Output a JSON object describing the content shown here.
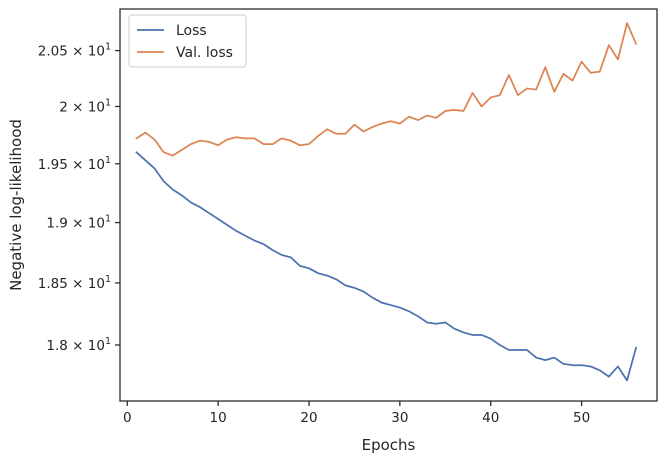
{
  "chart_data": {
    "type": "line",
    "xlabel": "Epochs",
    "ylabel": "Negative log-likelihood",
    "xlim": [
      -0.8,
      58.3
    ],
    "ylim": [
      17.56,
      20.88
    ],
    "y_scale": "log",
    "grid": false,
    "legend_position": "upper-left",
    "x_ticks": [
      0,
      10,
      20,
      30,
      40,
      50
    ],
    "y_ticks": [
      {
        "value": 18.0,
        "mantissa": "1.8",
        "base": "10",
        "exponent": "1"
      },
      {
        "value": 18.5,
        "mantissa": "1.85",
        "base": "10",
        "exponent": "1"
      },
      {
        "value": 19.0,
        "mantissa": "1.9",
        "base": "10",
        "exponent": "1"
      },
      {
        "value": 19.5,
        "mantissa": "1.95",
        "base": "10",
        "exponent": "1"
      },
      {
        "value": 20.0,
        "mantissa": "2",
        "base": "10",
        "exponent": "1"
      },
      {
        "value": 20.5,
        "mantissa": "2.05",
        "base": "10",
        "exponent": "1"
      }
    ],
    "series": [
      {
        "name": "Loss",
        "color": "#4c72b0",
        "x": [
          1,
          2,
          3,
          4,
          5,
          6,
          7,
          8,
          9,
          10,
          11,
          12,
          13,
          14,
          15,
          16,
          17,
          18,
          19,
          20,
          21,
          22,
          23,
          24,
          25,
          26,
          27,
          28,
          29,
          30,
          31,
          32,
          33,
          34,
          35,
          36,
          37,
          38,
          39,
          40,
          41,
          42,
          43,
          44,
          45,
          46,
          47,
          48,
          49,
          50,
          51,
          52,
          53,
          54,
          55,
          56
        ],
        "y": [
          19.6,
          19.53,
          19.46,
          19.35,
          19.28,
          19.23,
          19.17,
          19.13,
          19.08,
          19.03,
          18.98,
          18.93,
          18.89,
          18.85,
          18.82,
          18.77,
          18.73,
          18.71,
          18.64,
          18.62,
          18.58,
          18.56,
          18.53,
          18.48,
          18.46,
          18.43,
          18.38,
          18.34,
          18.32,
          18.3,
          18.27,
          18.23,
          18.18,
          18.17,
          18.18,
          18.13,
          18.1,
          18.08,
          18.08,
          18.05,
          18.0,
          17.96,
          17.96,
          17.96,
          17.9,
          17.88,
          17.9,
          17.85,
          17.84,
          17.84,
          17.83,
          17.8,
          17.75,
          17.83,
          17.72,
          17.98
        ]
      },
      {
        "name": "Val. loss",
        "color": "#dd8452",
        "x": [
          1,
          2,
          3,
          4,
          5,
          6,
          7,
          8,
          9,
          10,
          11,
          12,
          13,
          14,
          15,
          16,
          17,
          18,
          19,
          20,
          21,
          22,
          23,
          24,
          25,
          26,
          27,
          28,
          29,
          30,
          31,
          32,
          33,
          34,
          35,
          36,
          37,
          38,
          39,
          40,
          41,
          42,
          43,
          44,
          45,
          46,
          47,
          48,
          49,
          50,
          51,
          52,
          53,
          54,
          55,
          56
        ],
        "y": [
          19.72,
          19.77,
          19.71,
          19.6,
          19.57,
          19.62,
          19.67,
          19.7,
          19.69,
          19.66,
          19.71,
          19.73,
          19.72,
          19.72,
          19.67,
          19.67,
          19.72,
          19.7,
          19.66,
          19.67,
          19.74,
          19.8,
          19.76,
          19.76,
          19.84,
          19.78,
          19.82,
          19.85,
          19.87,
          19.85,
          19.91,
          19.88,
          19.92,
          19.9,
          19.96,
          19.97,
          19.96,
          20.12,
          20.0,
          20.08,
          20.1,
          20.28,
          20.1,
          20.16,
          20.15,
          20.35,
          20.13,
          20.29,
          20.23,
          20.4,
          20.3,
          20.31,
          20.55,
          20.42,
          20.75,
          20.56
        ]
      }
    ]
  }
}
